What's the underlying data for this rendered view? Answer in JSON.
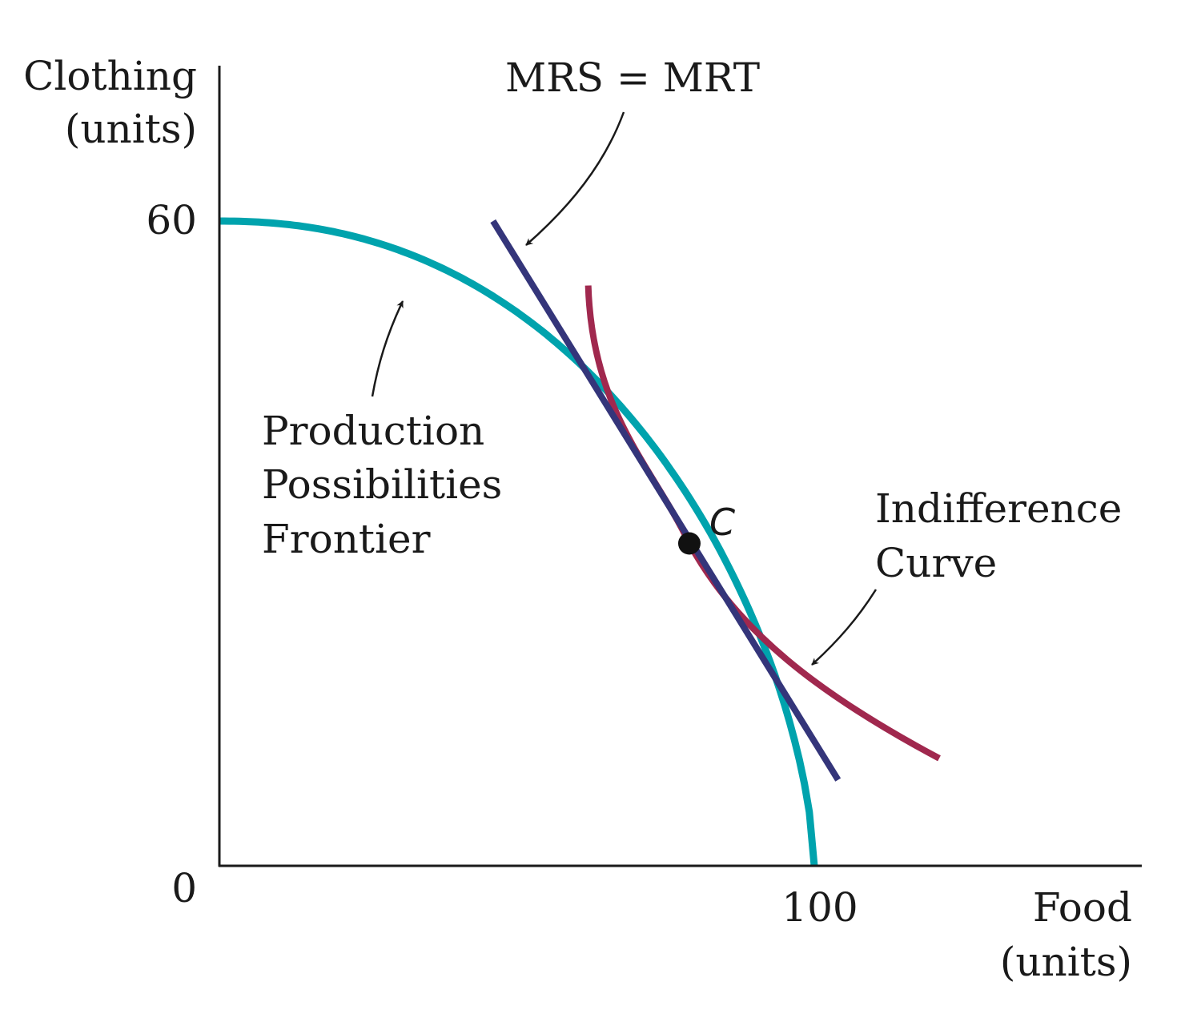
{
  "chart_data": {
    "type": "line",
    "x_axis": {
      "label": [
        "Food",
        "(units)"
      ],
      "range": [
        0,
        155
      ],
      "ticks": [
        {
          "value": 100,
          "label": "100"
        }
      ]
    },
    "y_axis": {
      "label": [
        "Clothing",
        "(units)"
      ],
      "range": [
        0,
        75
      ],
      "ticks": [
        {
          "value": 60,
          "label": "60"
        }
      ]
    },
    "origin_label": "0",
    "colors": {
      "ppf": "#00a3ad",
      "mrt_line": "#34357a",
      "indifference": "#a0284e",
      "text": "#1a1a1a"
    },
    "series": [
      {
        "name": "Production Possibilities Frontier",
        "role": "ppf",
        "intercepts": {
          "x": 100,
          "y": 60
        }
      },
      {
        "name": "MRS = MRT",
        "role": "tangent_line",
        "points": [
          {
            "x": 46,
            "y": 60
          },
          {
            "x": 104,
            "y": 8
          }
        ]
      },
      {
        "name": "Indifference Curve",
        "role": "indifference",
        "points": [
          {
            "x": 62,
            "y": 54
          },
          {
            "x": 79,
            "y": 30
          },
          {
            "x": 121,
            "y": 10
          }
        ]
      }
    ],
    "points": [
      {
        "label": "C",
        "x": 79,
        "y": 30
      }
    ],
    "annotations": {
      "ppf": [
        "Production",
        "Possibilities",
        "Frontier"
      ],
      "tangent": [
        "MRS = MRT"
      ],
      "indifference": [
        "Indifference",
        "Curve"
      ]
    }
  }
}
